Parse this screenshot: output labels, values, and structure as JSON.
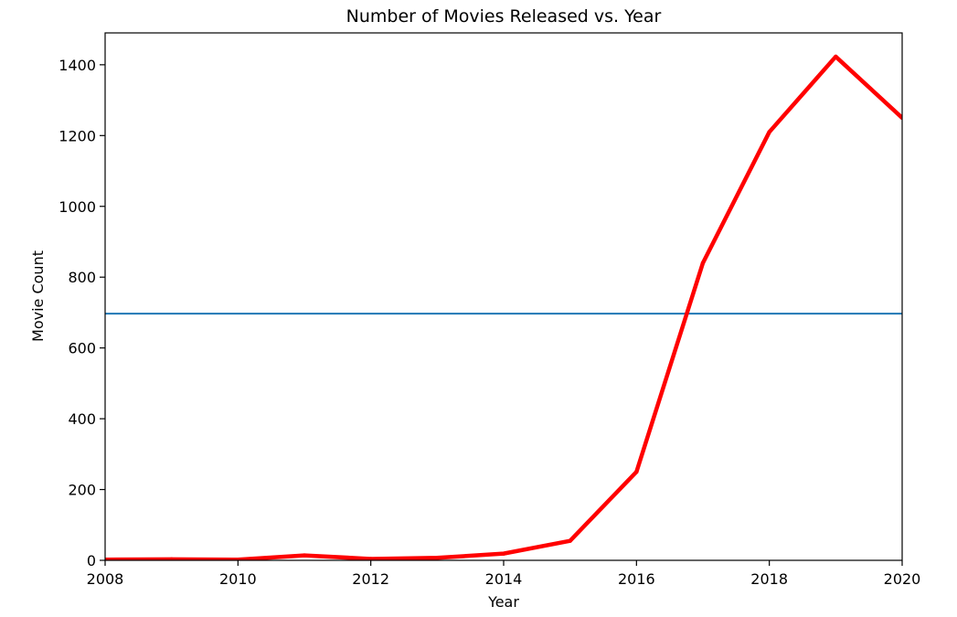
{
  "chart_data": {
    "type": "line",
    "title": "Number of Movies Released vs. Year",
    "xlabel": "Year",
    "ylabel": "Movie Count",
    "xlim": [
      2008,
      2020
    ],
    "ylim": [
      0,
      1490
    ],
    "xticks": [
      2008,
      2010,
      2012,
      2014,
      2016,
      2018,
      2020
    ],
    "yticks": [
      0,
      200,
      400,
      600,
      800,
      1000,
      1200,
      1400
    ],
    "grid": false,
    "series": [
      {
        "color": "#ff0000",
        "x": [
          2008,
          2009,
          2010,
          2011,
          2012,
          2013,
          2014,
          2015,
          2016,
          2017,
          2018,
          2019,
          2020
        ],
        "y": [
          2,
          3,
          2,
          14,
          4,
          7,
          19,
          55,
          250,
          840,
          1210,
          1423,
          1250
        ]
      }
    ],
    "hlines": [
      {
        "y": 697,
        "color": "#1f77b4"
      }
    ]
  }
}
